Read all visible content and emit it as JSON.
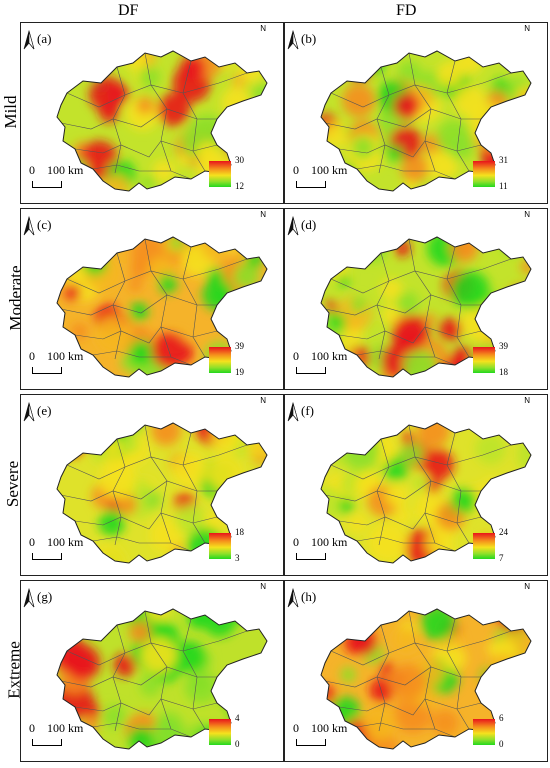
{
  "columns": [
    "DF",
    "FD"
  ],
  "rows": [
    "Mild",
    "Moderate",
    "Severe",
    "Extreme"
  ],
  "north_label": "N",
  "scale": {
    "zero": "0",
    "distance": "100 km"
  },
  "colors": {
    "high": "#e8141b",
    "mid": "#f5e11d",
    "low": "#23d81e"
  },
  "panels": [
    {
      "label": "(a)",
      "legend_max": "30",
      "legend_min": "12",
      "dominant": "mixed"
    },
    {
      "label": "(b)",
      "legend_max": "31",
      "legend_min": "11",
      "dominant": "mixed"
    },
    {
      "label": "(c)",
      "legend_max": "39",
      "legend_min": "19",
      "dominant": "orange"
    },
    {
      "label": "(d)",
      "legend_max": "39",
      "legend_min": "18",
      "dominant": "mixed"
    },
    {
      "label": "(e)",
      "legend_max": "18",
      "legend_min": "3",
      "dominant": "yellow"
    },
    {
      "label": "(f)",
      "legend_max": "24",
      "legend_min": "7",
      "dominant": "yellow"
    },
    {
      "label": "(g)",
      "legend_max": "4",
      "legend_min": "0",
      "dominant": "green-east"
    },
    {
      "label": "(h)",
      "legend_max": "6",
      "legend_min": "0",
      "dominant": "orange"
    }
  ]
}
